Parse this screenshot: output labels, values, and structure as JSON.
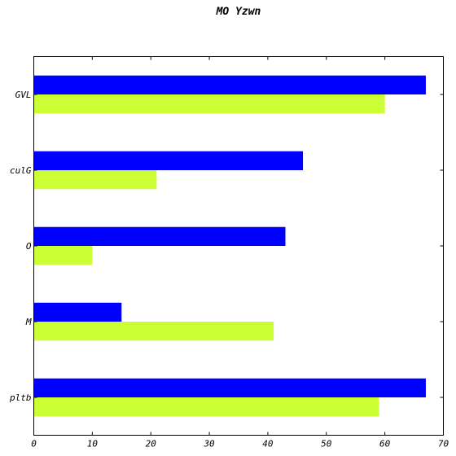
{
  "chart_data": {
    "type": "bar",
    "orientation": "horizontal",
    "title": "MO Yzwn",
    "categories": [
      "GVL",
      "culG",
      "O",
      "M",
      "pltb"
    ],
    "series": [
      {
        "color": "#0000ff",
        "values": [
          67,
          46,
          43,
          15,
          67
        ]
      },
      {
        "color": "#ccff33",
        "values": [
          60,
          21,
          10,
          41,
          59
        ]
      }
    ],
    "xlim": [
      0,
      70
    ],
    "xticks": [
      0,
      10,
      20,
      30,
      40,
      50,
      60,
      70
    ],
    "grid": false,
    "legend": "none"
  }
}
